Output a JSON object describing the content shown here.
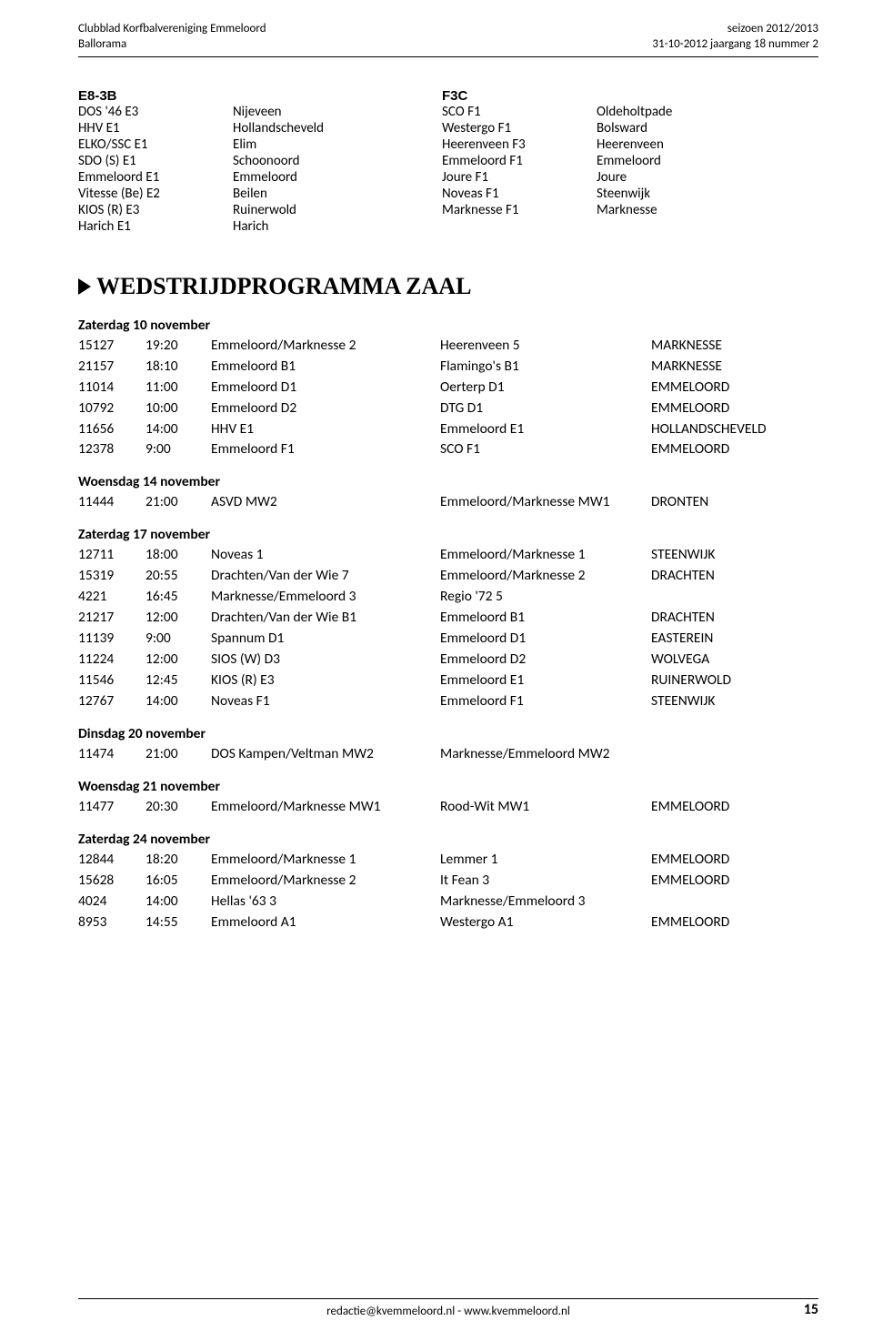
{
  "header": {
    "leftLine1": "Clubblad Korfbalvereniging Emmeloord",
    "leftLine2": "Ballorama",
    "rightLine1": "seizoen 2012/2013",
    "rightLine2": "31-10-2012 jaargang 18 nummer 2"
  },
  "groups": {
    "left": {
      "title": "E8-3B",
      "rows": [
        [
          "DOS '46 E3",
          "Nijeveen"
        ],
        [
          "HHV E1",
          "Hollandscheveld"
        ],
        [
          "ELKO/SSC E1",
          "Elim"
        ],
        [
          "SDO (S) E1",
          "Schoonoord"
        ],
        [
          "Emmeloord E1",
          "Emmeloord"
        ],
        [
          "Vitesse (Be) E2",
          "Beilen"
        ],
        [
          "KIOS (R) E3",
          "Ruinerwold"
        ],
        [
          "Harich E1",
          "Harich"
        ]
      ]
    },
    "right": {
      "title": "F3C",
      "rows": [
        [
          "SCO F1",
          "Oldeholtpade"
        ],
        [
          "Westergo F1",
          "Bolsward"
        ],
        [
          "Heerenveen F3",
          "Heerenveen"
        ],
        [
          "Emmeloord F1",
          "Emmeloord"
        ],
        [
          "Joure F1",
          "Joure"
        ],
        [
          "Noveas F1",
          "Steenwijk"
        ],
        [
          "Marknesse F1",
          "Marknesse"
        ]
      ]
    }
  },
  "scheduleTitle": "WEDSTRIJDPROGRAMMA ZAAL",
  "days": [
    {
      "heading": "Zaterdag 10 november",
      "matches": [
        [
          "15127",
          "19:20",
          "Emmeloord/Marknesse 2",
          "Heerenveen 5",
          "MARKNESSE"
        ],
        [
          "21157",
          "18:10",
          "Emmeloord B1",
          "Flamingo's B1",
          "MARKNESSE"
        ],
        [
          "11014",
          "11:00",
          "Emmeloord D1",
          "Oerterp D1",
          "EMMELOORD"
        ],
        [
          "10792",
          "10:00",
          "Emmeloord D2",
          "DTG D1",
          "EMMELOORD"
        ],
        [
          "11656",
          "14:00",
          "HHV E1",
          "Emmeloord E1",
          "HOLLANDSCHEVELD"
        ],
        [
          "12378",
          "9:00",
          "Emmeloord F1",
          "SCO F1",
          "EMMELOORD"
        ]
      ]
    },
    {
      "heading": "Woensdag 14 november",
      "matches": [
        [
          "11444",
          "21:00",
          "ASVD MW2",
          "Emmeloord/Marknesse MW1",
          "DRONTEN"
        ]
      ]
    },
    {
      "heading": "Zaterdag 17 november",
      "matches": [
        [
          "12711",
          "18:00",
          "Noveas 1",
          "Emmeloord/Marknesse 1",
          "STEENWIJK"
        ],
        [
          "15319",
          "20:55",
          "Drachten/Van der Wie 7",
          "Emmeloord/Marknesse 2",
          "DRACHTEN"
        ],
        [
          "4221",
          "16:45",
          "Marknesse/Emmeloord 3",
          "Regio '72 5",
          ""
        ],
        [
          "21217",
          "12:00",
          "Drachten/Van der Wie B1",
          "Emmeloord B1",
          "DRACHTEN"
        ],
        [
          "11139",
          "9:00",
          "Spannum D1",
          "Emmeloord D1",
          "EASTEREIN"
        ],
        [
          "11224",
          "12:00",
          "SIOS (W) D3",
          "Emmeloord D2",
          "WOLVEGA"
        ],
        [
          "11546",
          "12:45",
          "KIOS (R) E3",
          "Emmeloord E1",
          "RUINERWOLD"
        ],
        [
          "12767",
          "14:00",
          "Noveas F1",
          "Emmeloord F1",
          "STEENWIJK"
        ]
      ]
    },
    {
      "heading": "Dinsdag 20 november",
      "matches": [
        [
          "11474",
          "21:00",
          "DOS Kampen/Veltman MW2",
          "Marknesse/Emmeloord MW2",
          ""
        ]
      ]
    },
    {
      "heading": "Woensdag 21 november",
      "matches": [
        [
          "11477",
          "20:30",
          "Emmeloord/Marknesse MW1",
          "Rood-Wit MW1",
          "EMMELOORD"
        ]
      ]
    },
    {
      "heading": "Zaterdag 24 november",
      "matches": [
        [
          "12844",
          "18:20",
          "Emmeloord/Marknesse 1",
          "Lemmer 1",
          "EMMELOORD"
        ],
        [
          "15628",
          "16:05",
          "Emmeloord/Marknesse 2",
          "It Fean 3",
          "EMMELOORD"
        ],
        [
          "4024",
          "14:00",
          "Hellas '63 3",
          "Marknesse/Emmeloord 3",
          ""
        ],
        [
          "8953",
          "14:55",
          "Emmeloord A1",
          "Westergo A1",
          "EMMELOORD"
        ]
      ]
    }
  ],
  "footer": {
    "center": "redactie@kvemmeloord.nl    -    www.kvemmeloord.nl",
    "pageNumber": "15"
  }
}
